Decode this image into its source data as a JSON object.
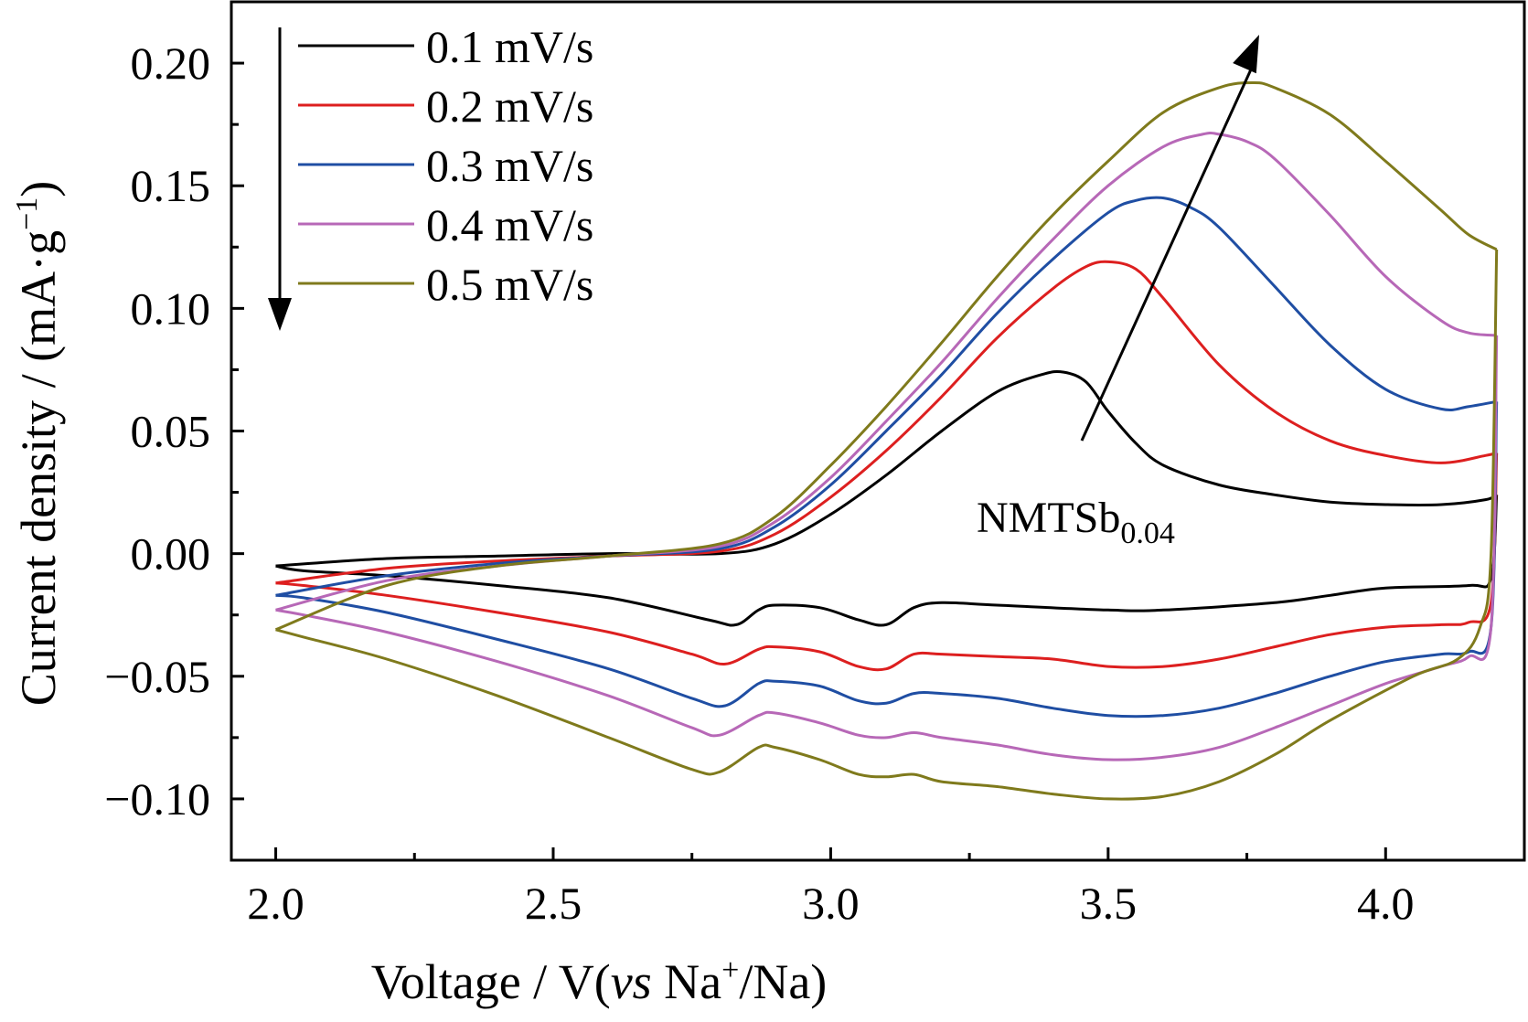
{
  "chart_data": {
    "type": "line",
    "title": "",
    "annotation": {
      "text": "NMTSb",
      "subscript": "0.04"
    },
    "xlabel": {
      "pre": "Voltage / V(",
      "italic": "vs",
      "mid": " Na",
      "sup": "+",
      "post": "/Na)"
    },
    "ylabel": {
      "pre": "Current density / (mA·g",
      "sup": "−1",
      "post": ")"
    },
    "xlim": [
      1.92,
      4.25
    ],
    "ylim": [
      -0.125,
      0.225
    ],
    "x_ticks": [
      2.0,
      2.5,
      3.0,
      3.5,
      4.0
    ],
    "x_tick_labels": [
      "2.0",
      "2.5",
      "3.0",
      "3.5",
      "4.0"
    ],
    "y_ticks": [
      0.2,
      0.15,
      0.1,
      0.05,
      0.0,
      -0.05,
      -0.1
    ],
    "y_tick_labels": [
      "0.20",
      "0.15",
      "0.10",
      "0.05",
      "0.00",
      "−0.05",
      "−0.10"
    ],
    "legend_position": "top-left",
    "grid": false,
    "series": [
      {
        "name": "0.1 mV/s",
        "color": "#000000",
        "anodic": [
          [
            2.0,
            -0.005
          ],
          [
            2.2,
            -0.002
          ],
          [
            2.4,
            -0.001
          ],
          [
            2.6,
            0.0
          ],
          [
            2.8,
            0.0
          ],
          [
            2.9,
            0.004
          ],
          [
            3.0,
            0.016
          ],
          [
            3.1,
            0.032
          ],
          [
            3.2,
            0.05
          ],
          [
            3.3,
            0.066
          ],
          [
            3.38,
            0.073
          ],
          [
            3.42,
            0.074
          ],
          [
            3.46,
            0.07
          ],
          [
            3.5,
            0.058
          ],
          [
            3.55,
            0.045
          ],
          [
            3.6,
            0.036
          ],
          [
            3.7,
            0.028
          ],
          [
            3.8,
            0.024
          ],
          [
            3.9,
            0.021
          ],
          [
            4.0,
            0.02
          ],
          [
            4.1,
            0.02
          ],
          [
            4.18,
            0.022
          ],
          [
            4.2,
            0.024
          ]
        ],
        "cathodic": [
          [
            4.2,
            0.024
          ],
          [
            4.19,
            -0.01
          ],
          [
            4.15,
            -0.013
          ],
          [
            4.0,
            -0.014
          ],
          [
            3.9,
            -0.017
          ],
          [
            3.8,
            -0.02
          ],
          [
            3.6,
            -0.023
          ],
          [
            3.5,
            -0.023
          ],
          [
            3.3,
            -0.021
          ],
          [
            3.2,
            -0.02
          ],
          [
            3.15,
            -0.022
          ],
          [
            3.1,
            -0.029
          ],
          [
            3.05,
            -0.027
          ],
          [
            2.98,
            -0.022
          ],
          [
            2.9,
            -0.021
          ],
          [
            2.87,
            -0.023
          ],
          [
            2.83,
            -0.029
          ],
          [
            2.78,
            -0.027
          ],
          [
            2.6,
            -0.018
          ],
          [
            2.4,
            -0.013
          ],
          [
            2.2,
            -0.009
          ],
          [
            2.05,
            -0.007
          ],
          [
            2.0,
            -0.005
          ]
        ]
      },
      {
        "name": "0.2 mV/s",
        "color": "#dd1f1f",
        "anodic": [
          [
            2.0,
            -0.012
          ],
          [
            2.2,
            -0.006
          ],
          [
            2.4,
            -0.003
          ],
          [
            2.6,
            -0.001
          ],
          [
            2.8,
            0.001
          ],
          [
            2.9,
            0.008
          ],
          [
            3.0,
            0.023
          ],
          [
            3.1,
            0.042
          ],
          [
            3.2,
            0.064
          ],
          [
            3.3,
            0.088
          ],
          [
            3.4,
            0.108
          ],
          [
            3.46,
            0.117
          ],
          [
            3.5,
            0.119
          ],
          [
            3.55,
            0.116
          ],
          [
            3.6,
            0.104
          ],
          [
            3.7,
            0.077
          ],
          [
            3.8,
            0.058
          ],
          [
            3.9,
            0.046
          ],
          [
            4.0,
            0.04
          ],
          [
            4.1,
            0.037
          ],
          [
            4.18,
            0.04
          ],
          [
            4.2,
            0.041
          ]
        ],
        "cathodic": [
          [
            4.2,
            0.041
          ],
          [
            4.19,
            -0.02
          ],
          [
            4.15,
            -0.028
          ],
          [
            4.1,
            -0.029
          ],
          [
            4.0,
            -0.03
          ],
          [
            3.9,
            -0.033
          ],
          [
            3.8,
            -0.038
          ],
          [
            3.7,
            -0.043
          ],
          [
            3.6,
            -0.046
          ],
          [
            3.5,
            -0.046
          ],
          [
            3.4,
            -0.043
          ],
          [
            3.3,
            -0.042
          ],
          [
            3.2,
            -0.041
          ],
          [
            3.15,
            -0.041
          ],
          [
            3.1,
            -0.047
          ],
          [
            3.05,
            -0.046
          ],
          [
            2.98,
            -0.04
          ],
          [
            2.9,
            -0.038
          ],
          [
            2.87,
            -0.039
          ],
          [
            2.81,
            -0.045
          ],
          [
            2.75,
            -0.041
          ],
          [
            2.6,
            -0.032
          ],
          [
            2.4,
            -0.024
          ],
          [
            2.2,
            -0.017
          ],
          [
            2.05,
            -0.013
          ],
          [
            2.0,
            -0.012
          ]
        ]
      },
      {
        "name": "0.3 mV/s",
        "color": "#1f4ea3",
        "anodic": [
          [
            2.0,
            -0.017
          ],
          [
            2.2,
            -0.009
          ],
          [
            2.4,
            -0.004
          ],
          [
            2.6,
            -0.001
          ],
          [
            2.8,
            0.002
          ],
          [
            2.9,
            0.011
          ],
          [
            3.0,
            0.028
          ],
          [
            3.1,
            0.05
          ],
          [
            3.2,
            0.073
          ],
          [
            3.3,
            0.098
          ],
          [
            3.4,
            0.12
          ],
          [
            3.5,
            0.139
          ],
          [
            3.55,
            0.144
          ],
          [
            3.6,
            0.145
          ],
          [
            3.65,
            0.141
          ],
          [
            3.7,
            0.133
          ],
          [
            3.8,
            0.109
          ],
          [
            3.9,
            0.085
          ],
          [
            4.0,
            0.067
          ],
          [
            4.1,
            0.059
          ],
          [
            4.15,
            0.06
          ],
          [
            4.2,
            0.062
          ]
        ],
        "cathodic": [
          [
            4.2,
            0.062
          ],
          [
            4.19,
            -0.03
          ],
          [
            4.15,
            -0.04
          ],
          [
            4.1,
            -0.041
          ],
          [
            4.0,
            -0.044
          ],
          [
            3.9,
            -0.05
          ],
          [
            3.8,
            -0.057
          ],
          [
            3.7,
            -0.063
          ],
          [
            3.6,
            -0.066
          ],
          [
            3.5,
            -0.066
          ],
          [
            3.4,
            -0.063
          ],
          [
            3.3,
            -0.059
          ],
          [
            3.2,
            -0.057
          ],
          [
            3.15,
            -0.057
          ],
          [
            3.1,
            -0.061
          ],
          [
            3.05,
            -0.06
          ],
          [
            2.98,
            -0.054
          ],
          [
            2.9,
            -0.052
          ],
          [
            2.87,
            -0.053
          ],
          [
            2.81,
            -0.062
          ],
          [
            2.75,
            -0.059
          ],
          [
            2.6,
            -0.047
          ],
          [
            2.4,
            -0.035
          ],
          [
            2.2,
            -0.024
          ],
          [
            2.05,
            -0.018
          ],
          [
            2.0,
            -0.017
          ]
        ]
      },
      {
        "name": "0.4 mV/s",
        "color": "#b768b7",
        "anodic": [
          [
            2.0,
            -0.023
          ],
          [
            2.2,
            -0.011
          ],
          [
            2.4,
            -0.005
          ],
          [
            2.6,
            -0.001
          ],
          [
            2.8,
            0.003
          ],
          [
            2.9,
            0.013
          ],
          [
            3.0,
            0.031
          ],
          [
            3.1,
            0.054
          ],
          [
            3.2,
            0.078
          ],
          [
            3.3,
            0.104
          ],
          [
            3.4,
            0.128
          ],
          [
            3.5,
            0.15
          ],
          [
            3.6,
            0.166
          ],
          [
            3.67,
            0.171
          ],
          [
            3.7,
            0.171
          ],
          [
            3.75,
            0.168
          ],
          [
            3.8,
            0.161
          ],
          [
            3.9,
            0.138
          ],
          [
            4.0,
            0.113
          ],
          [
            4.1,
            0.095
          ],
          [
            4.15,
            0.09
          ],
          [
            4.2,
            0.089
          ]
        ],
        "cathodic": [
          [
            4.2,
            0.089
          ],
          [
            4.19,
            -0.03
          ],
          [
            4.15,
            -0.042
          ],
          [
            4.1,
            -0.046
          ],
          [
            4.0,
            -0.053
          ],
          [
            3.9,
            -0.062
          ],
          [
            3.8,
            -0.071
          ],
          [
            3.7,
            -0.079
          ],
          [
            3.6,
            -0.083
          ],
          [
            3.5,
            -0.084
          ],
          [
            3.4,
            -0.082
          ],
          [
            3.3,
            -0.078
          ],
          [
            3.2,
            -0.075
          ],
          [
            3.15,
            -0.073
          ],
          [
            3.1,
            -0.075
          ],
          [
            3.05,
            -0.074
          ],
          [
            2.98,
            -0.069
          ],
          [
            2.9,
            -0.065
          ],
          [
            2.87,
            -0.066
          ],
          [
            2.8,
            -0.074
          ],
          [
            2.75,
            -0.071
          ],
          [
            2.6,
            -0.058
          ],
          [
            2.4,
            -0.044
          ],
          [
            2.2,
            -0.032
          ],
          [
            2.05,
            -0.025
          ],
          [
            2.0,
            -0.023
          ]
        ]
      },
      {
        "name": "0.5 mV/s",
        "color": "#7f7a1c",
        "anodic": [
          [
            2.0,
            -0.031
          ],
          [
            2.2,
            -0.013
          ],
          [
            2.4,
            -0.005
          ],
          [
            2.6,
            -0.001
          ],
          [
            2.8,
            0.004
          ],
          [
            2.9,
            0.015
          ],
          [
            3.0,
            0.036
          ],
          [
            3.1,
            0.06
          ],
          [
            3.2,
            0.086
          ],
          [
            3.3,
            0.113
          ],
          [
            3.4,
            0.138
          ],
          [
            3.5,
            0.16
          ],
          [
            3.6,
            0.18
          ],
          [
            3.7,
            0.19
          ],
          [
            3.76,
            0.192
          ],
          [
            3.8,
            0.19
          ],
          [
            3.9,
            0.179
          ],
          [
            4.0,
            0.16
          ],
          [
            4.1,
            0.14
          ],
          [
            4.15,
            0.13
          ],
          [
            4.2,
            0.124
          ]
        ],
        "cathodic": [
          [
            4.2,
            0.124
          ],
          [
            4.19,
            0.0
          ],
          [
            4.17,
            -0.03
          ],
          [
            4.13,
            -0.043
          ],
          [
            4.05,
            -0.05
          ],
          [
            3.9,
            -0.068
          ],
          [
            3.8,
            -0.082
          ],
          [
            3.7,
            -0.093
          ],
          [
            3.6,
            -0.099
          ],
          [
            3.5,
            -0.1
          ],
          [
            3.4,
            -0.098
          ],
          [
            3.3,
            -0.095
          ],
          [
            3.2,
            -0.093
          ],
          [
            3.15,
            -0.09
          ],
          [
            3.1,
            -0.091
          ],
          [
            3.05,
            -0.09
          ],
          [
            2.98,
            -0.084
          ],
          [
            2.9,
            -0.079
          ],
          [
            2.87,
            -0.079
          ],
          [
            2.8,
            -0.089
          ],
          [
            2.75,
            -0.088
          ],
          [
            2.6,
            -0.075
          ],
          [
            2.4,
            -0.058
          ],
          [
            2.2,
            -0.043
          ],
          [
            2.05,
            -0.034
          ],
          [
            2.0,
            -0.031
          ]
        ]
      }
    ]
  }
}
